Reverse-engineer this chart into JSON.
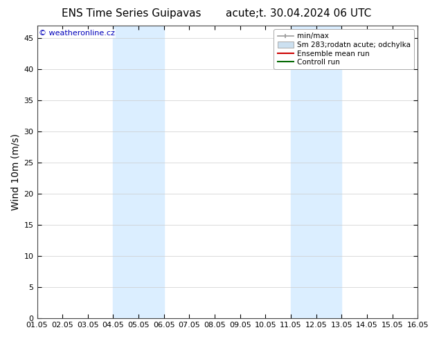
{
  "title_left": "ENS Time Series Guipavas",
  "title_right": "acute;t. 30.04.2024 06 UTC",
  "ylabel": "Wind 10m (m/s)",
  "xlim": [
    0,
    15
  ],
  "ylim": [
    0,
    47
  ],
  "yticks": [
    0,
    5,
    10,
    15,
    20,
    25,
    30,
    35,
    40,
    45
  ],
  "xtick_positions": [
    0,
    1,
    2,
    3,
    4,
    5,
    6,
    7,
    8,
    9,
    10,
    11,
    12,
    13,
    14,
    15
  ],
  "xtick_labels": [
    "01.05",
    "02.05",
    "03.05",
    "04.05",
    "05.05",
    "06.05",
    "07.05",
    "08.05",
    "09.05",
    "10.05",
    "11.05",
    "12.05",
    "13.05",
    "14.05",
    "15.05",
    "16.05"
  ],
  "shaded_regions": [
    {
      "x_start": 3.0,
      "x_end": 5.0,
      "color": "#dbeeff"
    },
    {
      "x_start": 10.0,
      "x_end": 12.0,
      "color": "#dbeeff"
    }
  ],
  "watermark_text": "© weatheronline.cz",
  "watermark_color": "#0000bb",
  "background_color": "#ffffff",
  "plot_bg_color": "#ffffff",
  "legend_entries": [
    {
      "label": "min/max",
      "color": "#999999",
      "type": "errorbar"
    },
    {
      "label": "Sm 283;rodatn acute; odchylka",
      "color": "#cce0f0",
      "type": "box"
    },
    {
      "label": "Ensemble mean run",
      "color": "#cc0000",
      "type": "line"
    },
    {
      "label": "Controll run",
      "color": "#006600",
      "type": "line"
    }
  ],
  "title_fontsize": 11,
  "axis_label_fontsize": 10,
  "tick_fontsize": 8,
  "legend_fontsize": 7.5,
  "watermark_fontsize": 8
}
